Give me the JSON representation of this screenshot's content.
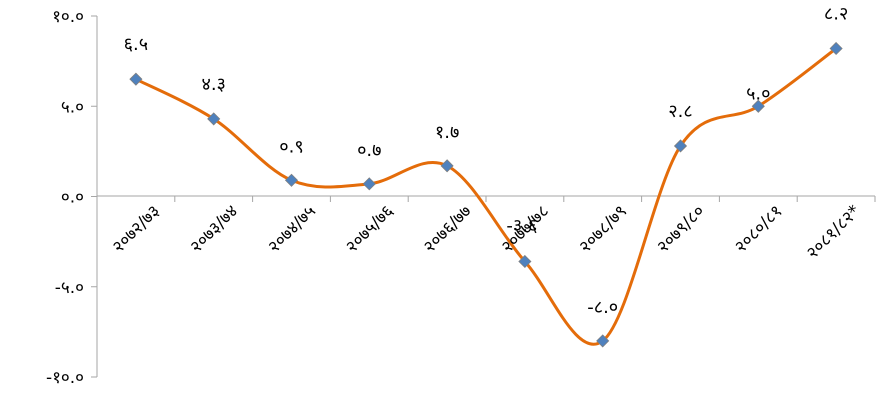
{
  "chart_data": {
    "type": "line",
    "title": "",
    "xlabel": "",
    "ylabel": "",
    "categories": [
      "२०७२/७३",
      "२०७३/७४",
      "२०७४/७५",
      "२०७५/७६",
      "२०७६/७७",
      "२०७७/७८",
      "२०७८/७९",
      "२०७९/८०",
      "२०८०/८१",
      "२०८१/८२*"
    ],
    "series": [
      {
        "values": [
          6.5,
          4.3,
          0.9,
          0.7,
          1.7,
          -3.6,
          -8.0,
          2.8,
          5.0,
          8.2
        ],
        "labels": [
          "६.५",
          "४.३",
          "०.९",
          "०.७",
          "१.७",
          "-३.६",
          "-८.०",
          "२.८",
          "५.०",
          "८.२"
        ]
      }
    ],
    "y_ticks": [
      10,
      5,
      0,
      -5,
      -10
    ],
    "y_tick_labels": [
      "१०.०",
      "५.०",
      "०.०",
      "-५.०",
      "-१०.०"
    ],
    "ylim": [
      -10,
      10
    ],
    "grid": false,
    "legend": "none",
    "colors": {
      "line": "#E46C0A",
      "marker": "#4F81BD",
      "marker_edge": "#7F7F7F",
      "axis": "#A6A6A6"
    }
  }
}
